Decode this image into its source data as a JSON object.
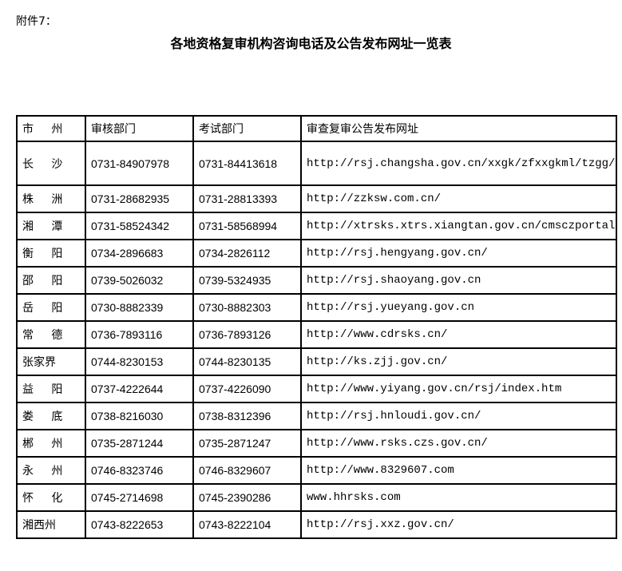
{
  "attachment_label": "附件7：",
  "title": "各地资格复审机构咨询电话及公告发布网址一览表",
  "table": {
    "headers": [
      "市州",
      "审核部门",
      "考试部门",
      "审查复审公告发布网址"
    ],
    "rows": [
      {
        "city": "长沙",
        "review": "0731-84907978",
        "exam": "0731-84413618",
        "url": "http://rsj.changsha.gov.cn/xxgk/zfxxgkml/tzgg/"
      },
      {
        "city": "株洲",
        "review": "0731-28682935",
        "exam": "0731-28813393",
        "url": "http://zzksw.com.cn/"
      },
      {
        "city": "湘潭",
        "review": "0731-58524342",
        "exam": "0731-58568994",
        "url": "http://xtrsks.xtrs.xiangtan.gov.cn/cmsczportal/"
      },
      {
        "city": "衡阳",
        "review": "0734-2896683",
        "exam": "0734-2826112",
        "url": "http://rsj.hengyang.gov.cn/"
      },
      {
        "city": "邵阳",
        "review": "0739-5026032",
        "exam": "0739-5324935",
        "url": "http://rsj.shaoyang.gov.cn"
      },
      {
        "city": "岳阳",
        "review": "0730-8882339",
        "exam": "0730-8882303",
        "url": "http://rsj.yueyang.gov.cn"
      },
      {
        "city": "常德",
        "review": "0736-7893116",
        "exam": "0736-7893126",
        "url": "http://www.cdrsks.cn/"
      },
      {
        "city": "张家界",
        "review": "0744-8230153",
        "exam": "0744-8230135",
        "url": "http://ks.zjj.gov.cn/"
      },
      {
        "city": "益阳",
        "review": "0737-4222644",
        "exam": "0737-4226090",
        "url": "http://www.yiyang.gov.cn/rsj/index.htm"
      },
      {
        "city": "娄底",
        "review": "0738-8216030",
        "exam": "0738-8312396",
        "url": "http://rsj.hnloudi.gov.cn/"
      },
      {
        "city": "郴州",
        "review": "0735-2871244",
        "exam": "0735-2871247",
        "url": "http://www.rsks.czs.gov.cn/"
      },
      {
        "city": "永州",
        "review": "0746-8323746",
        "exam": "0746-8329607",
        "url": "http://www.8329607.com"
      },
      {
        "city": "怀化",
        "review": "0745-2714698",
        "exam": "0745-2390286",
        "url": "www.hhrsks.com"
      },
      {
        "city": "湘西州",
        "review": "0743-8222653",
        "exam": "0743-8222104",
        "url": "http://rsj.xxz.gov.cn/"
      }
    ]
  }
}
